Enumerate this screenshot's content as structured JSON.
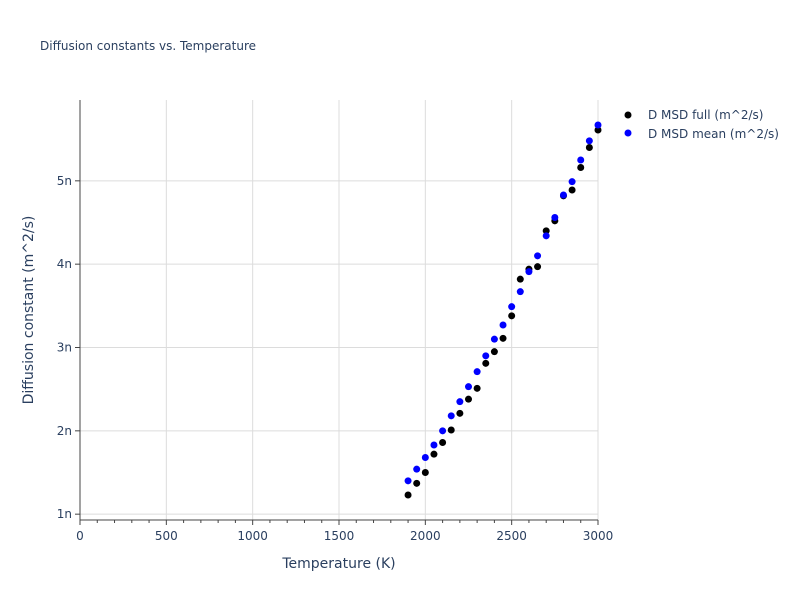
{
  "chart_data": {
    "type": "scatter",
    "title": "Diffusion constants vs. Temperature",
    "xlabel": "Temperature (K)",
    "ylabel": "Diffusion constant (m^2/s)",
    "xlim": [
      0,
      3000
    ],
    "ylim": [
      9.3e-10,
      5.97e-09
    ],
    "grid": true,
    "legend": "top-right",
    "x_ticks": [
      0,
      500,
      1000,
      1500,
      2000,
      2500,
      3000
    ],
    "x_tick_labels": [
      "0",
      "500",
      "1000",
      "1500",
      "2000",
      "2500",
      "3000"
    ],
    "y_ticks": [
      1e-09,
      2e-09,
      3e-09,
      4e-09,
      5e-09
    ],
    "y_tick_labels": [
      "1n",
      "2n",
      "3n",
      "4n",
      "5n"
    ],
    "x": [
      1900,
      1950,
      2000,
      2050,
      2100,
      2150,
      2200,
      2250,
      2300,
      2350,
      2400,
      2450,
      2500,
      2550,
      2600,
      2650,
      2700,
      2750,
      2800,
      2850,
      2900,
      2950,
      3000
    ],
    "series": [
      {
        "name": "D MSD full (m^2/s)",
        "color": "#000000",
        "values": [
          1.23e-09,
          1.37e-09,
          1.5e-09,
          1.72e-09,
          1.86e-09,
          2.01e-09,
          2.21e-09,
          2.38e-09,
          2.51e-09,
          2.81e-09,
          2.95e-09,
          3.11e-09,
          3.38e-09,
          3.82e-09,
          3.94e-09,
          3.97e-09,
          4.4e-09,
          4.52e-09,
          4.82e-09,
          4.89e-09,
          5.16e-09,
          5.4e-09,
          5.61e-09
        ]
      },
      {
        "name": "D MSD mean (m^2/s)",
        "color": "#0000ff",
        "values": [
          1.4e-09,
          1.54e-09,
          1.68e-09,
          1.83e-09,
          2e-09,
          2.18e-09,
          2.35e-09,
          2.53e-09,
          2.71e-09,
          2.9e-09,
          3.1e-09,
          3.27e-09,
          3.49e-09,
          3.67e-09,
          3.91e-09,
          4.1e-09,
          4.34e-09,
          4.56e-09,
          4.83e-09,
          4.99e-09,
          5.25e-09,
          5.48e-09,
          5.67e-09
        ]
      }
    ]
  }
}
